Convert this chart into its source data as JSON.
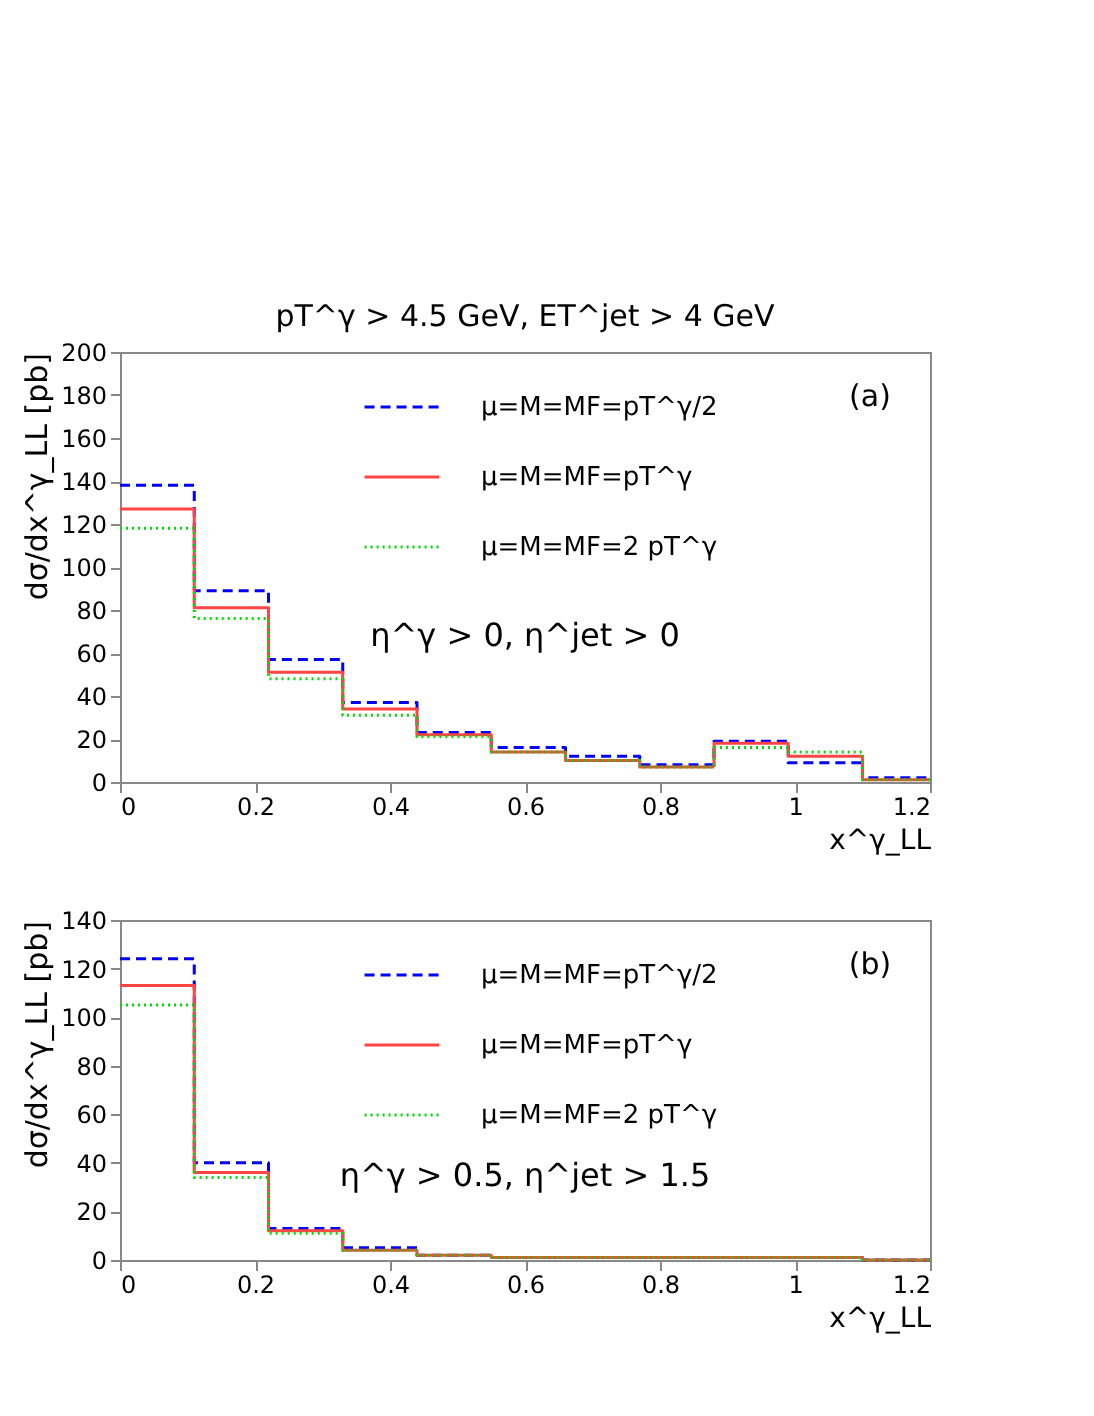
{
  "chart_data": [
    {
      "type": "histogram",
      "title": "pT^γ > 4.5 GeV, ET^jet > 4 GeV",
      "xlabel": "x^γ_LL",
      "ylabel": "dσ/dx^γ_LL [pb]",
      "bins": [
        0,
        0.11,
        0.22,
        0.33,
        0.44,
        0.55,
        0.66,
        0.77,
        0.88,
        0.99,
        1.1,
        1.2
      ],
      "series": [
        {
          "name": "μ=M=MF=pT^γ/2",
          "color": "#0000ff",
          "line_style": "dashed",
          "values": [
            138,
            89,
            57,
            37,
            23,
            16,
            12,
            8,
            19,
            9,
            2
          ]
        },
        {
          "name": "μ=M=MF=pT^γ",
          "color": "#ff4444",
          "line_style": "solid",
          "values": [
            127,
            81,
            51,
            34,
            22,
            14,
            10,
            7,
            18,
            12,
            1
          ]
        },
        {
          "name": "μ=M=MF=2 pT^γ",
          "color": "#00dd00",
          "line_style": "dotted",
          "values": [
            118,
            76,
            48,
            31,
            21,
            14,
            10,
            7,
            16,
            14,
            1
          ]
        }
      ],
      "xlim": [
        0,
        1.2
      ],
      "xticks": [
        0,
        0.2,
        0.4,
        0.6,
        0.8,
        1,
        1.2
      ],
      "ylim": [
        0,
        200
      ],
      "yticks": [
        0,
        20,
        40,
        60,
        80,
        100,
        120,
        140,
        160,
        180,
        200
      ],
      "legend": "top",
      "annotations": [
        "(a)",
        "η^γ > 0, η^jet > 0"
      ]
    },
    {
      "type": "histogram",
      "xlabel": "x^γ_LL",
      "ylabel": "dσ/dx^γ_LL [pb]",
      "bins": [
        0,
        0.11,
        0.22,
        0.33,
        0.44,
        0.55,
        0.66,
        0.77,
        0.88,
        0.99,
        1.1,
        1.2
      ],
      "series": [
        {
          "name": "μ=M=MF=pT^γ/2",
          "color": "#0000ff",
          "line_style": "dashed",
          "values": [
            124,
            40,
            13,
            5,
            2,
            1,
            1,
            1,
            1,
            1,
            0
          ]
        },
        {
          "name": "μ=M=MF=pT^γ",
          "color": "#ff4444",
          "line_style": "solid",
          "values": [
            113,
            36,
            12,
            4,
            2,
            1,
            1,
            1,
            1,
            1,
            0
          ]
        },
        {
          "name": "μ=M=MF=2 pT^γ",
          "color": "#00dd00",
          "line_style": "dotted",
          "values": [
            105,
            34,
            11,
            4,
            2,
            1,
            1,
            1,
            1,
            1,
            0
          ]
        }
      ],
      "xlim": [
        0,
        1.2
      ],
      "xticks": [
        0,
        0.2,
        0.4,
        0.6,
        0.8,
        1,
        1.2
      ],
      "ylim": [
        0,
        140
      ],
      "yticks": [
        0,
        20,
        40,
        60,
        80,
        100,
        120,
        140
      ],
      "legend": "top",
      "annotations": [
        "(b)",
        "η^γ > 0.5, η^jet > 1.5"
      ]
    }
  ]
}
